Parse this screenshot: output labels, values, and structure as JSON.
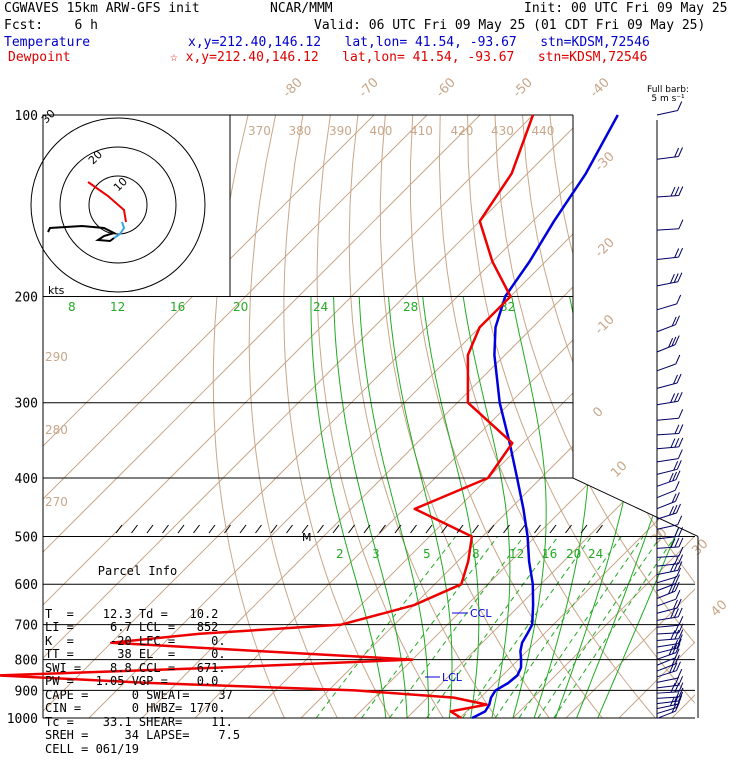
{
  "header": {
    "model": "CGWAVES 15km ARW-GFS init",
    "org": "NCAR/MMM",
    "init": "Init: 00 UTC Fri 09 May 25",
    "fcst": "Fcst:    6 h",
    "valid": "Valid: 06 UTC Fri 09 May 25 (01 CDT Fri 09 May 25)",
    "temperature_label": "Temperature",
    "temperature_loc": "x,y=212.40,146.12   lat,lon= 41.54, -93.67   stn=KDSM,72546",
    "dewpoint_label": "Dewpoint",
    "dewpoint_loc": "☆ x,y=212.40,146.12   lat,lon= 41.54, -93.67   stn=KDSM,72546"
  },
  "colors": {
    "temperature": "#0000dd",
    "dewpoint": "#ee0000",
    "isotherm": "#c8a78a",
    "mixing_ratio": "#22aa22",
    "isobar": "#000000",
    "hodograph_line": "#000000"
  },
  "chart_data": {
    "type": "line",
    "title": "",
    "ylabel": "",
    "pressure_levels": [
      100,
      200,
      300,
      400,
      500,
      600,
      700,
      800,
      900,
      1000
    ],
    "pressure_tick_labels": [
      "100",
      "200",
      "300",
      "400",
      "500",
      "600",
      "700",
      "800",
      "900",
      "1000"
    ],
    "isotherm_labels": [
      "-80",
      "-70",
      "-60",
      "-50",
      "-40",
      "-30",
      "-20",
      "-10",
      "0",
      "10",
      "20",
      "30",
      "40"
    ],
    "theta_labels_top": [
      "370",
      "380",
      "390",
      "400",
      "410",
      "420",
      "430",
      "440"
    ],
    "theta_labels_left": [
      "290",
      "280",
      "270"
    ],
    "mixing_ratio_labels_upper": [
      "8",
      "12",
      "16",
      "20",
      "24",
      "28",
      "32"
    ],
    "mixing_ratio_labels_lower": [
      "2",
      "3",
      "5",
      "8",
      "12",
      "16",
      "20",
      "24"
    ],
    "series": [
      {
        "name": "Temperature",
        "pressure": [
          1000,
          975,
          950,
          925,
          900,
          875,
          850,
          825,
          800,
          775,
          750,
          725,
          700,
          650,
          600,
          550,
          500,
          450,
          400,
          350,
          300,
          250,
          225,
          200,
          175,
          150,
          125,
          100
        ],
        "temperature": [
          12.3,
          13.5,
          13.0,
          12.0,
          11.5,
          12.5,
          12.8,
          12.0,
          10.5,
          8.8,
          7.5,
          6.8,
          6.0,
          2.5,
          -1.5,
          -6.5,
          -11.5,
          -17.5,
          -24.5,
          -32.5,
          -42.0,
          -52.0,
          -57.0,
          -61.0,
          -63.0,
          -66.0,
          -69.0,
          -74.0
        ]
      },
      {
        "name": "Dewpoint",
        "pressure": [
          1000,
          975,
          950,
          925,
          900,
          875,
          850,
          825,
          800,
          775,
          750,
          725,
          700,
          650,
          600,
          550,
          500,
          450,
          400,
          350,
          300,
          250,
          225,
          200,
          175,
          150,
          125,
          100
        ],
        "dewpoint": [
          10.2,
          7.0,
          12.5,
          5.0,
          -15.0,
          -55.0,
          -85.0,
          -45.0,
          -10.0,
          -40.0,
          -70.0,
          -55.0,
          -30.0,
          -20.0,
          -15.0,
          -18.0,
          -22.0,
          -38.0,
          -30.0,
          -32.0,
          -48.0,
          -57.0,
          -60.0,
          -60.0,
          -70.0,
          -80.0,
          -83.0,
          -90.0
        ]
      }
    ],
    "annotations": {
      "ccl": "CCL",
      "lcl": "LCL",
      "max_wind": "M"
    },
    "hodograph": {
      "rings": [
        "10",
        "20",
        "30"
      ],
      "units": "kts"
    },
    "wind_barb_label": "Full barb:\n5 m s⁻¹"
  },
  "parcel": {
    "title": "Parcel Info",
    "rows": [
      "T  =    12.3 Td =   10.2",
      "LI =     6.7 LCL =   852",
      "K  =     -20 LFC =     0.",
      "TT =      38 EL  =     0.",
      "SWI =    8.8 CCL =   671.",
      "PW =   1.05 VGP =    0.0",
      "CAPE =      0 SWEAT=    37",
      "CIN =       0 HWBZ= 1770.",
      "Tc =    33.1 SHEAR=    11.",
      "SREH =     34 LAPSE=    7.5",
      "CELL = 061/19"
    ]
  }
}
